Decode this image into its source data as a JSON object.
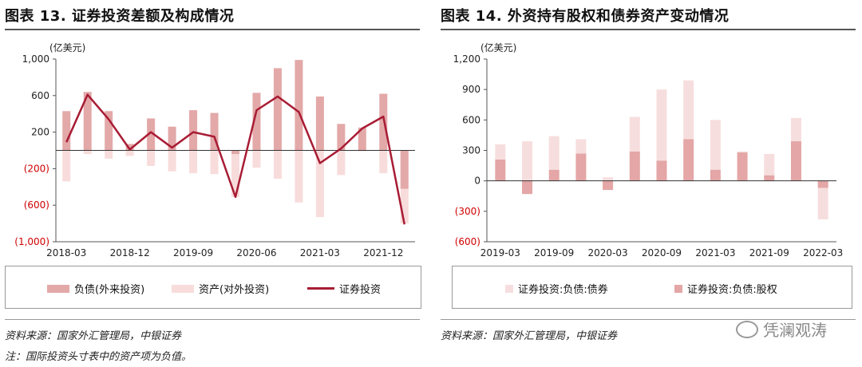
{
  "left": {
    "title": "图表 13. 证券投资差额及构成情况",
    "legend": [
      "负债(外来投资)",
      "资产(对外投资)",
      "证券投资"
    ],
    "source": "资料来源：国家外汇管理局，中银证券",
    "note": "注：国际投资头寸表中的资产项为负值。"
  },
  "right": {
    "title": "图表 14. 外资持有股权和债券资产变动情况",
    "legend": [
      "证券投资:负债:债券",
      "证券投资:负债:股权"
    ],
    "source": "资料来源：国家外汇管理局，中银证券"
  },
  "watermark": "凭澜观涛",
  "colors": {
    "liab": "#e3a8a8",
    "asset": "#f8dcdc",
    "line": "#a81c34",
    "red_tick": "#d00000",
    "right_bond": "#f7dede",
    "right_equity": "#e4a6a6"
  },
  "chart_data": [
    {
      "type": "bar",
      "ylabel": "(亿美元)",
      "yticks": [
        1000,
        600,
        200,
        -200,
        -600,
        -1000
      ],
      "ytick_labels": [
        "1,000",
        "600",
        "200",
        "(200)",
        "(600)",
        "(1,000)"
      ],
      "ylim": [
        -1000,
        1000
      ],
      "categories": [
        "2018-03",
        "2018-06",
        "2018-09",
        "2018-12",
        "2019-03",
        "2019-06",
        "2019-09",
        "2019-12",
        "2020-03",
        "2020-06",
        "2020-09",
        "2020-12",
        "2021-03",
        "2021-06",
        "2021-09",
        "2021-12",
        "2022-03"
      ],
      "xtick_labels": [
        "2018-03",
        "2018-12",
        "2019-09",
        "2020-06",
        "2021-03",
        "2021-12"
      ],
      "xtick_indices": [
        0,
        3,
        6,
        9,
        12,
        15
      ],
      "series": [
        {
          "name": "负债(外来投资)",
          "kind": "bar",
          "values": [
            430,
            640,
            430,
            70,
            350,
            260,
            440,
            410,
            -40,
            630,
            900,
            990,
            590,
            290,
            250,
            620,
            -420
          ]
        },
        {
          "name": "资产(对外投资)",
          "kind": "bar",
          "values": [
            -340,
            -40,
            -90,
            -60,
            -170,
            -230,
            -250,
            -260,
            -510,
            -190,
            -310,
            -570,
            -730,
            -270,
            -10,
            -250,
            -800
          ]
        },
        {
          "name": "证券投资",
          "kind": "line",
          "values": [
            90,
            610,
            340,
            10,
            200,
            30,
            200,
            150,
            -510,
            440,
            590,
            420,
            -140,
            20,
            240,
            370,
            -810
          ]
        }
      ]
    },
    {
      "type": "bar",
      "stacked": true,
      "ylabel": "(亿美元)",
      "yticks": [
        1200,
        900,
        600,
        300,
        0,
        -300,
        -600
      ],
      "ytick_labels": [
        "1,200",
        "900",
        "600",
        "300",
        "0",
        "(300)",
        "(600)"
      ],
      "ylim": [
        -600,
        1200
      ],
      "categories": [
        "2019-03",
        "2019-06",
        "2019-09",
        "2019-12",
        "2020-03",
        "2020-06",
        "2020-09",
        "2020-12",
        "2021-03",
        "2021-06",
        "2021-09",
        "2021-12",
        "2022-03"
      ],
      "xtick_labels": [
        "2019-03",
        "2019-09",
        "2020-03",
        "2020-09",
        "2021-03",
        "2021-09",
        "2022-03"
      ],
      "xtick_indices": [
        0,
        2,
        4,
        6,
        8,
        10,
        12
      ],
      "series": [
        {
          "name": "证券投资:负债:债券",
          "values": [
            150,
            390,
            330,
            140,
            35,
            340,
            700,
            580,
            490,
            10,
            210,
            230,
            -310
          ]
        },
        {
          "name": "证券投资:负债:股权",
          "values": [
            210,
            -130,
            110,
            270,
            -90,
            290,
            200,
            410,
            110,
            280,
            55,
            390,
            -70
          ]
        }
      ]
    }
  ]
}
